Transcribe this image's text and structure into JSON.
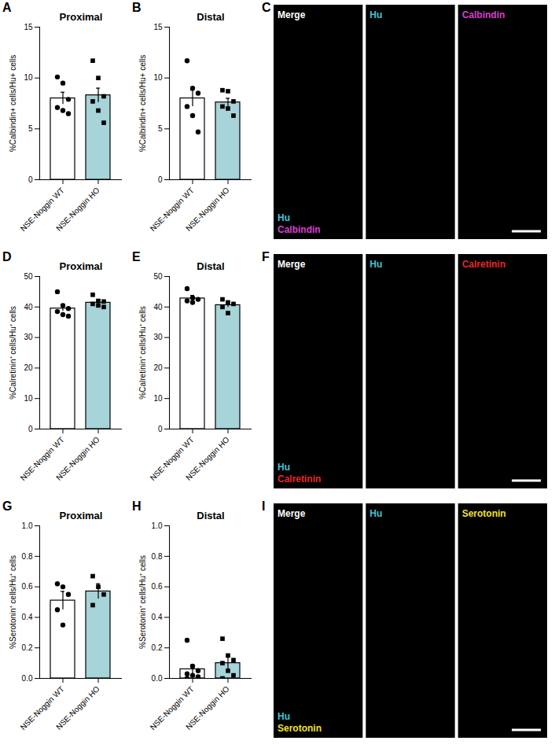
{
  "chart_data": [
    {
      "type": "bar",
      "panel": "A",
      "title": "Proximal",
      "ylabel": "%Calbindin+ cells/Hu+ cells",
      "categories": [
        "NSE-Noggin WT",
        "NSE-Noggin HO"
      ],
      "values": [
        8.0,
        8.3
      ],
      "errors": [
        0.6,
        0.7
      ],
      "points": [
        [
          10.1,
          9.5,
          7.9,
          7.1,
          6.8,
          6.5
        ],
        [
          11.7,
          10.0,
          8.2,
          7.7,
          6.8,
          5.6
        ]
      ],
      "colors": [
        "#ffffff",
        "#a6d4d8"
      ],
      "markers": [
        "circle",
        "square"
      ],
      "ylim": [
        0,
        15
      ],
      "yticks": [
        0,
        5,
        10,
        15
      ]
    },
    {
      "type": "bar",
      "panel": "B",
      "title": "Distal",
      "ylabel": "%Calbindin+ cells/Hu+ cells",
      "categories": [
        "NSE-Noggin WT",
        "NSE-Noggin HO"
      ],
      "values": [
        8.0,
        7.6
      ],
      "errors": [
        0.8,
        0.4
      ],
      "points": [
        [
          11.7,
          9.0,
          8.5,
          7.2,
          6.3,
          4.7
        ],
        [
          8.8,
          8.7,
          7.7,
          7.2,
          7.0,
          6.3
        ]
      ],
      "colors": [
        "#ffffff",
        "#a6d4d8"
      ],
      "markers": [
        "circle",
        "square"
      ],
      "ylim": [
        0,
        15
      ],
      "yticks": [
        0,
        5,
        10,
        15
      ]
    },
    {
      "type": "bar",
      "panel": "D",
      "title": "Proximal",
      "ylabel": "%Calretinin⁺ cells/Hu⁺ cells",
      "categories": [
        "NSE-Noggin WT",
        "NSE-Noggin HO"
      ],
      "values": [
        39.5,
        41.4
      ],
      "errors": [
        0.9,
        0.6
      ],
      "points": [
        [
          45,
          40.5,
          39.5,
          38.5,
          37.5,
          37
        ],
        [
          44,
          42,
          41.8,
          41,
          40.5,
          40
        ]
      ],
      "colors": [
        "#ffffff",
        "#a6d4d8"
      ],
      "markers": [
        "circle",
        "square"
      ],
      "ylim": [
        0,
        50
      ],
      "yticks": [
        0,
        10,
        20,
        30,
        40,
        50
      ]
    },
    {
      "type": "bar",
      "panel": "E",
      "title": "Distal",
      "ylabel": "%Calretinin⁺ cells/Hu⁺ cells",
      "categories": [
        "NSE-Noggin WT",
        "NSE-Noggin HO"
      ],
      "values": [
        42.8,
        40.6
      ],
      "errors": [
        1.0,
        0.7
      ],
      "points": [
        [
          46,
          43,
          42.5,
          42,
          41.5
        ],
        [
          42.5,
          41.5,
          41,
          40,
          38
        ]
      ],
      "colors": [
        "#ffffff",
        "#a6d4d8"
      ],
      "markers": [
        "circle",
        "square"
      ],
      "ylim": [
        0,
        50
      ],
      "yticks": [
        0,
        10,
        20,
        30,
        40,
        50
      ]
    },
    {
      "type": "bar",
      "panel": "G",
      "title": "Proximal",
      "ylabel": "%Serotonin⁺ cells/Hu⁺ cells",
      "categories": [
        "NSE-Noggin WT",
        "NSE-Noggin HO"
      ],
      "values": [
        0.51,
        0.57
      ],
      "errors": [
        0.06,
        0.05
      ],
      "points": [
        [
          0.62,
          0.6,
          0.55,
          0.45,
          0.35
        ],
        [
          0.67,
          0.6,
          0.55,
          0.48
        ]
      ],
      "colors": [
        "#ffffff",
        "#a6d4d8"
      ],
      "markers": [
        "circle",
        "square"
      ],
      "ylim": [
        0,
        1
      ],
      "yticks": [
        {
          "value": 0,
          "label": "0.0"
        },
        0.2,
        0.4,
        0.6,
        0.8,
        {
          "value": 1,
          "label": "1.0"
        }
      ]
    },
    {
      "type": "bar",
      "panel": "H",
      "title": "Distal",
      "ylabel": "%Serotonin⁺ cells/Hu⁺ cells",
      "categories": [
        "NSE-Noggin WT",
        "NSE-Noggin HO"
      ],
      "values": [
        0.06,
        0.1
      ],
      "errors": [
        0.03,
        0.04
      ],
      "points": [
        [
          0.25,
          0.08,
          0.05,
          0.03,
          0.02,
          0.01,
          0.0
        ],
        [
          0.26,
          0.15,
          0.12,
          0.1,
          0.05,
          0.02,
          0.0
        ]
      ],
      "colors": [
        "#ffffff",
        "#a6d4d8"
      ],
      "markers": [
        "circle",
        "square"
      ],
      "ylim": [
        0,
        1
      ],
      "yticks": [
        {
          "value": 0,
          "label": "0.0"
        },
        0.2,
        0.4,
        0.6,
        0.8,
        {
          "value": 1,
          "label": "1.0"
        }
      ]
    }
  ],
  "image_panels": [
    {
      "panel": "C",
      "tiles": [
        {
          "label": "Merge",
          "color": "#ffffff"
        },
        {
          "label": "Hu",
          "color": "#3fc6d6"
        },
        {
          "label": "Calbindin",
          "color": "#d63fcf"
        }
      ],
      "overlay_legend": [
        {
          "label": "Hu",
          "color": "#3fc6d6"
        },
        {
          "label": "Calbindin",
          "color": "#d63fcf"
        }
      ]
    },
    {
      "panel": "F",
      "tiles": [
        {
          "label": "Merge",
          "color": "#ffffff"
        },
        {
          "label": "Hu",
          "color": "#3fc6d6"
        },
        {
          "label": "Calretinin",
          "color": "#e8252a"
        }
      ],
      "overlay_legend": [
        {
          "label": "Hu",
          "color": "#3fc6d6"
        },
        {
          "label": "Calretinin",
          "color": "#e8252a"
        }
      ]
    },
    {
      "panel": "I",
      "tiles": [
        {
          "label": "Merge",
          "color": "#ffffff"
        },
        {
          "label": "Hu",
          "color": "#3fc6d6"
        },
        {
          "label": "Serotonin",
          "color": "#f0e130"
        }
      ],
      "overlay_legend": [
        {
          "label": "Hu",
          "color": "#3fc6d6"
        },
        {
          "label": "Serotonin",
          "color": "#f0e130"
        }
      ]
    }
  ]
}
